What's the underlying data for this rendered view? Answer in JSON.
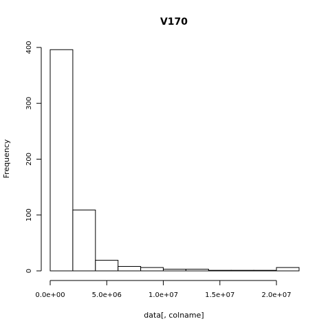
{
  "chart_data": {
    "type": "bar",
    "title": "V170",
    "xlabel": "data[, colname]",
    "ylabel": "Frequency",
    "xlim": [
      0,
      22000000
    ],
    "ylim": [
      0,
      400
    ],
    "bins": [
      {
        "x0": 0,
        "x1": 2000000,
        "count": 396
      },
      {
        "x0": 2000000,
        "x1": 4000000,
        "count": 109
      },
      {
        "x0": 4000000,
        "x1": 6000000,
        "count": 19
      },
      {
        "x0": 6000000,
        "x1": 8000000,
        "count": 8
      },
      {
        "x0": 8000000,
        "x1": 10000000,
        "count": 6
      },
      {
        "x0": 10000000,
        "x1": 12000000,
        "count": 3
      },
      {
        "x0": 12000000,
        "x1": 14000000,
        "count": 3
      },
      {
        "x0": 14000000,
        "x1": 16000000,
        "count": 1
      },
      {
        "x0": 16000000,
        "x1": 18000000,
        "count": 1
      },
      {
        "x0": 18000000,
        "x1": 20000000,
        "count": 1
      },
      {
        "x0": 20000000,
        "x1": 22000000,
        "count": 6
      }
    ],
    "x_ticks": [
      {
        "value": 0,
        "label": "0.0e+00"
      },
      {
        "value": 5000000,
        "label": "5.0e+06"
      },
      {
        "value": 10000000,
        "label": "1.0e+07"
      },
      {
        "value": 15000000,
        "label": "1.5e+07"
      },
      {
        "value": 20000000,
        "label": "2.0e+07"
      }
    ],
    "y_ticks": [
      {
        "value": 0,
        "label": "0"
      },
      {
        "value": 100,
        "label": "100"
      },
      {
        "value": 200,
        "label": "200"
      },
      {
        "value": 300,
        "label": "300"
      },
      {
        "value": 400,
        "label": "400"
      }
    ],
    "grid": false,
    "legend": "none"
  }
}
